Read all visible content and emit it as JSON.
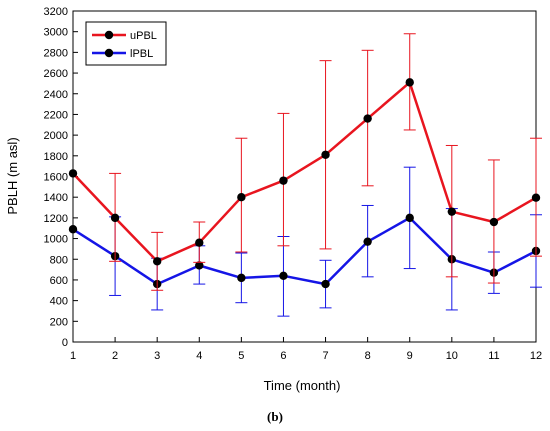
{
  "caption": "(b)",
  "colors": {
    "upbl": "#e8151f",
    "lpbl": "#1515e6",
    "marker": "#000000"
  },
  "chart_data": {
    "type": "line",
    "xlabel": "Time (month)",
    "ylabel": "PBLH (m asl)",
    "x": [
      1,
      2,
      3,
      4,
      5,
      6,
      7,
      8,
      9,
      10,
      11,
      12
    ],
    "xlim": [
      1,
      12
    ],
    "ylim": [
      0,
      3200
    ],
    "yticks": [
      0,
      200,
      400,
      600,
      800,
      1000,
      1200,
      1400,
      1600,
      1800,
      2000,
      2200,
      2400,
      2600,
      2800,
      3000,
      3200
    ],
    "grid": false,
    "legend_position": "top-left",
    "series": [
      {
        "name": "uPBL",
        "color": "#e8151f",
        "values": [
          1630,
          1200,
          780,
          960,
          1400,
          1560,
          1810,
          2160,
          2510,
          1260,
          1160,
          1395
        ],
        "error_low": [
          1630,
          780,
          500,
          770,
          870,
          930,
          900,
          1510,
          2050,
          630,
          570,
          830
        ],
        "error_high": [
          1630,
          1630,
          1060,
          1160,
          1970,
          2210,
          2720,
          2820,
          2980,
          1900,
          1760,
          1970
        ]
      },
      {
        "name": "lPBL",
        "color": "#1515e6",
        "values": [
          1090,
          830,
          560,
          740,
          620,
          640,
          560,
          970,
          1200,
          800,
          670,
          880
        ],
        "error_low": [
          1090,
          450,
          310,
          560,
          380,
          250,
          330,
          630,
          710,
          310,
          470,
          530
        ],
        "error_high": [
          1090,
          1210,
          810,
          930,
          860,
          1020,
          790,
          1320,
          1690,
          1290,
          870,
          1230
        ]
      }
    ]
  }
}
